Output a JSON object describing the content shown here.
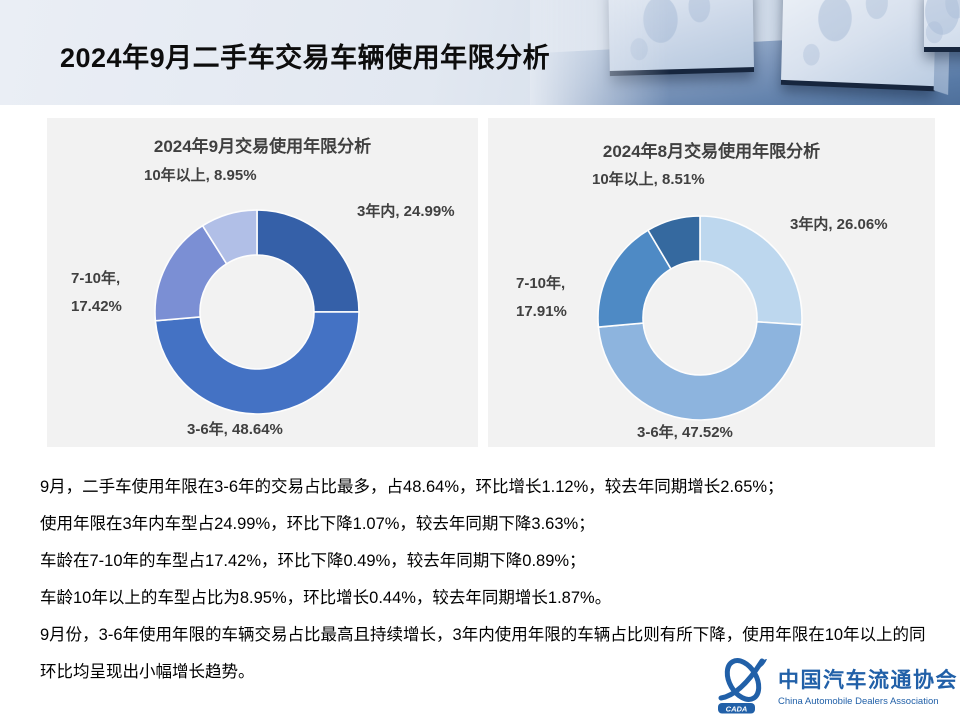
{
  "header": {
    "title": "2024年9月二手车交易车辆使用年限分析"
  },
  "chart_data": [
    {
      "type": "pie",
      "subtype": "donut",
      "title": "2024年9月交易使用年限分析",
      "categories": [
        "3年内",
        "3-6年",
        "7-10年",
        "10年以上"
      ],
      "values": [
        24.99,
        48.64,
        17.42,
        8.95
      ],
      "colors": [
        "#3560A8",
        "#4472C4",
        "#7B8FD4",
        "#B1BFE7"
      ],
      "label_format": "{category}, {value}%",
      "legend": "none",
      "labels_position": "outside",
      "start_angle_deg": 0,
      "direction": "clockwise"
    },
    {
      "type": "pie",
      "subtype": "donut",
      "title": "2024年8月交易使用年限分析",
      "categories": [
        "3年内",
        "3-6年",
        "7-10年",
        "10年以上"
      ],
      "values": [
        26.06,
        47.52,
        17.91,
        8.51
      ],
      "colors": [
        "#BDD7EE",
        "#8DB4DE",
        "#4E8AC5",
        "#35699F"
      ],
      "label_format": "{category}, {value}%",
      "legend": "none",
      "labels_position": "outside",
      "start_angle_deg": 0,
      "direction": "clockwise"
    }
  ],
  "analysis": {
    "lines": [
      "9月，二手车使用年限在3-6年的交易占比最多，占48.64%，环比增长1.12%，较去年同期增长2.65%；",
      "使用年限在3年内车型占24.99%，环比下降1.07%，较去年同期下降3.63%；",
      "车龄在7-10年的车型占17.42%，环比下降0.49%，较去年同期下降0.89%；",
      "车龄10年以上的车型占比为8.95%，环比增长0.44%，较去年同期增长1.87%。",
      "9月份，3-6年使用年限的车辆交易占比最高且持续增长，3年内使用年限的车辆占比则有所下降，使用年限在10年以上的同",
      "环比均呈现出小幅增长趋势。"
    ]
  },
  "footer_logo": {
    "acronym": "CADA",
    "name_cn": "中国汽车流通协会",
    "name_en": "China Automobile Dealers Association",
    "brand_color": "#2160A8"
  }
}
